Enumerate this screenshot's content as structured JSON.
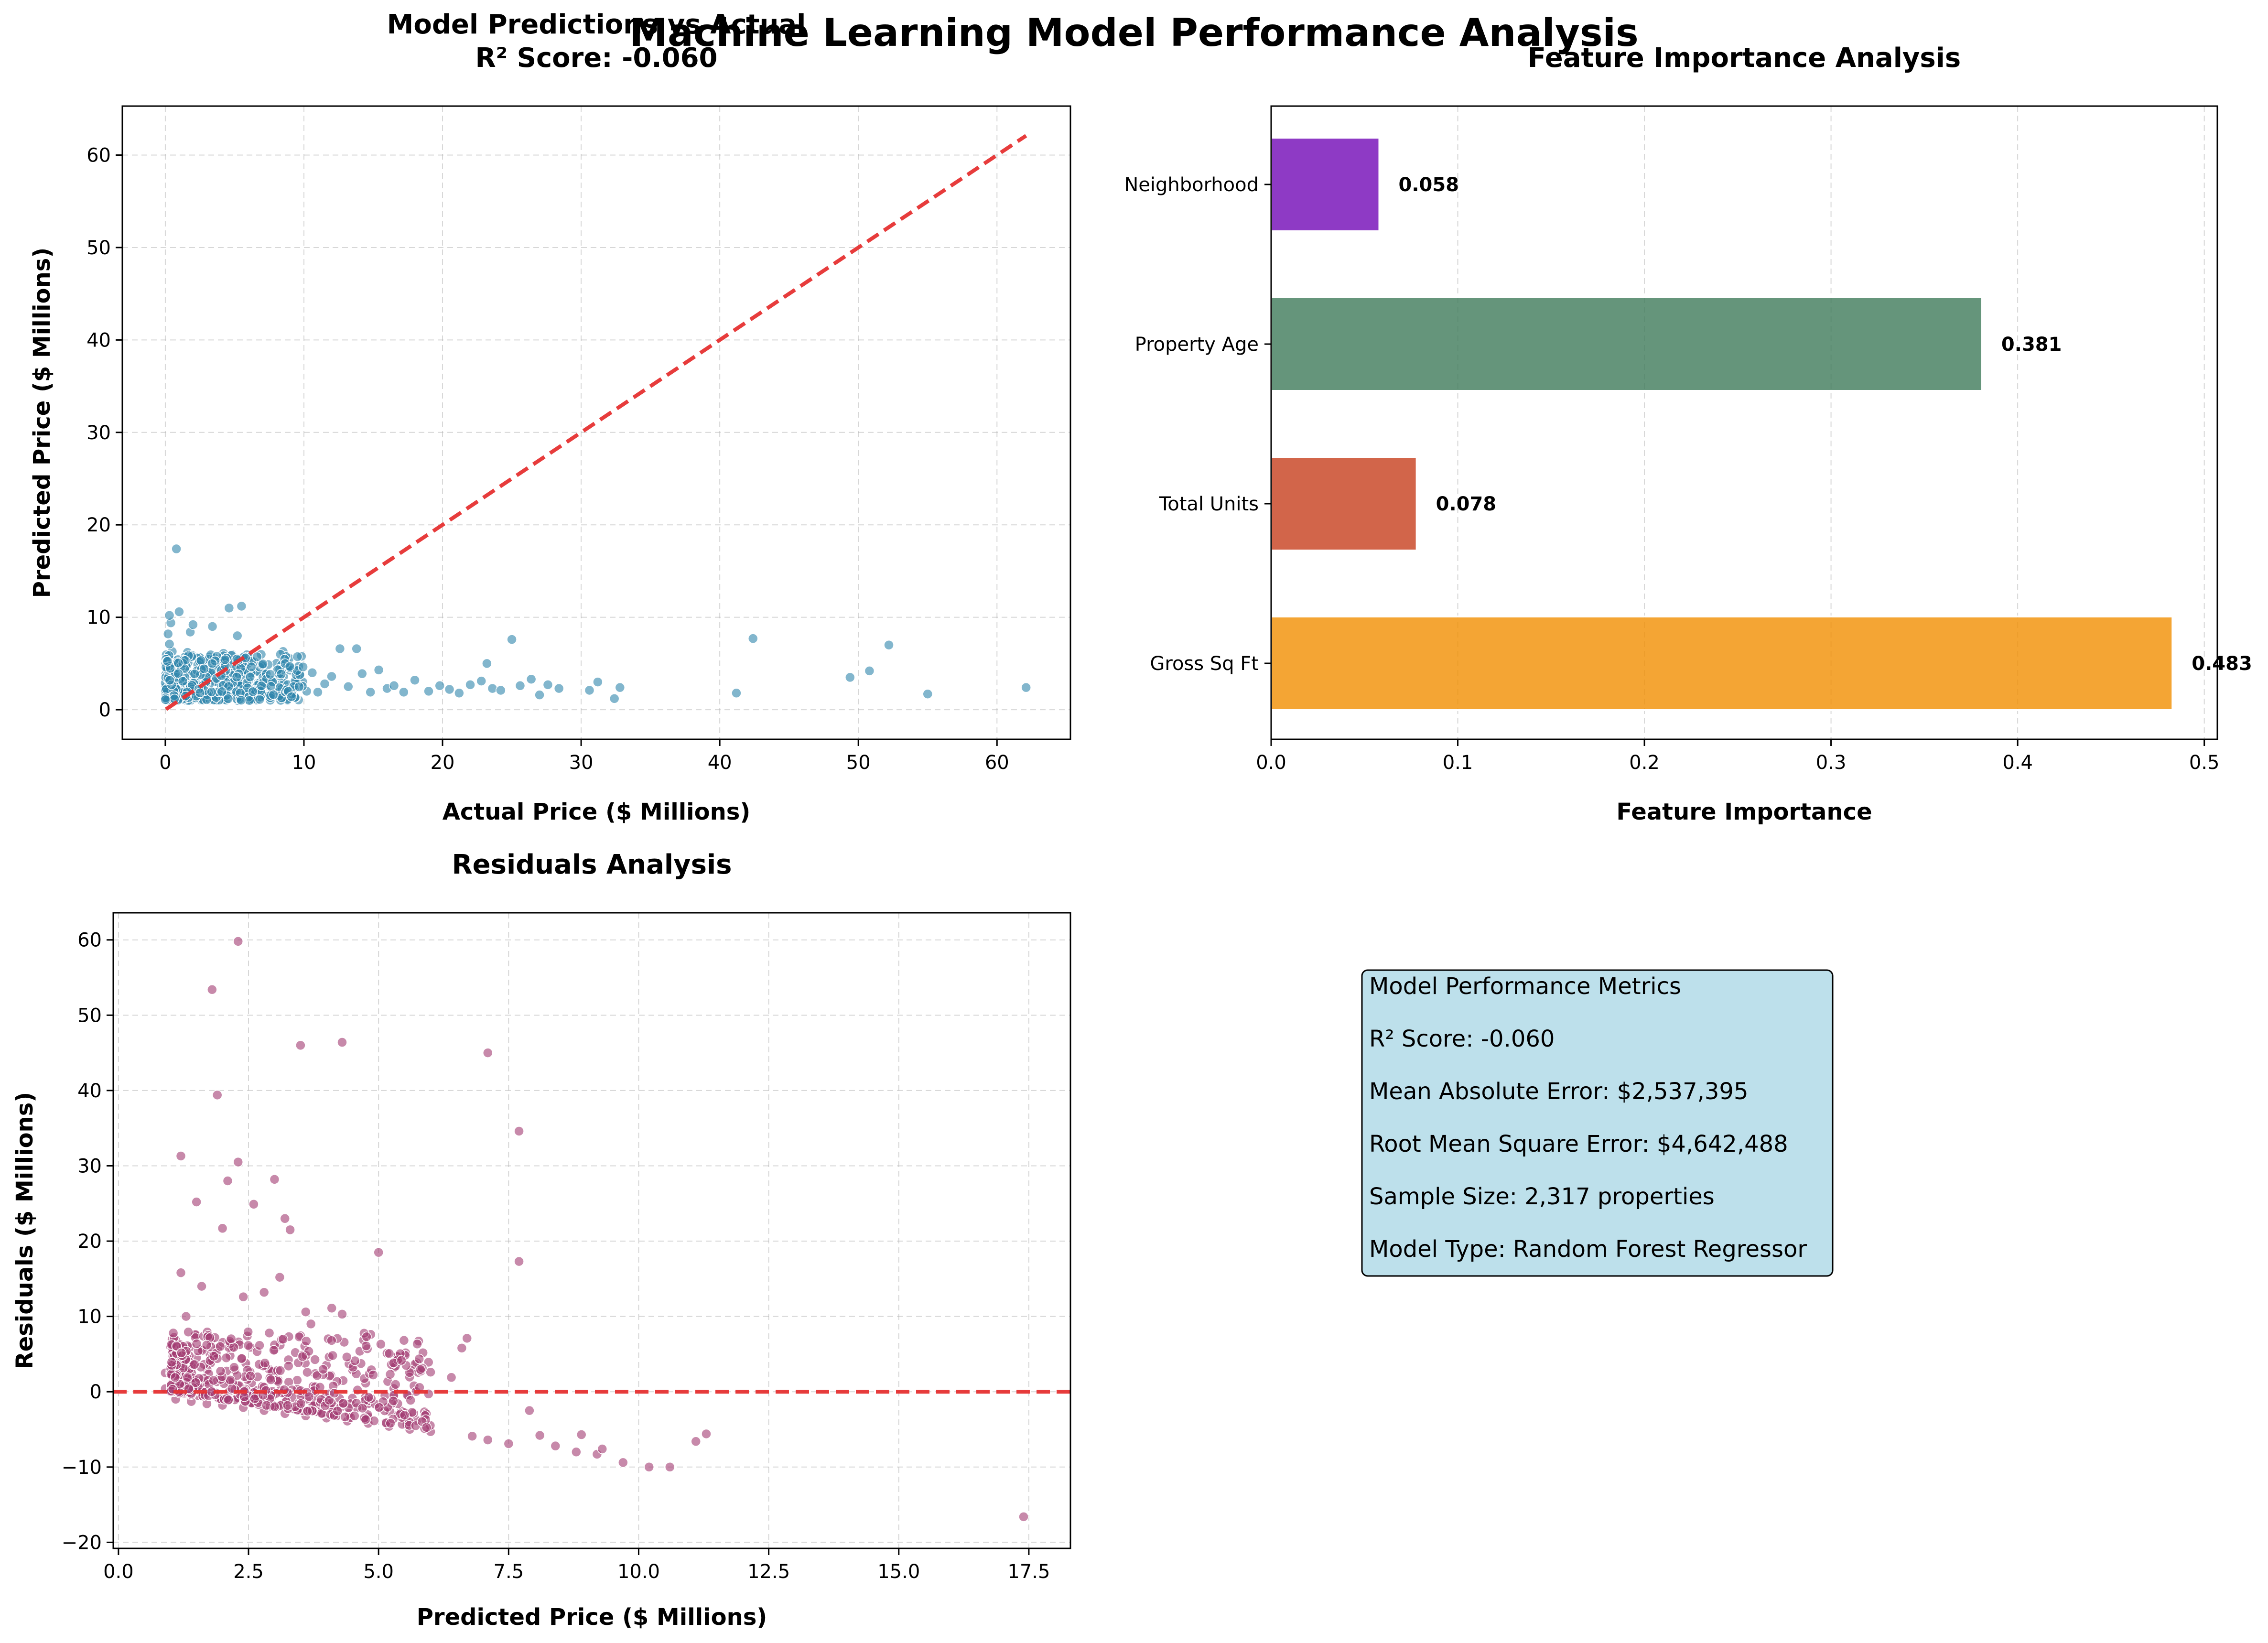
{
  "figure_title": "Machine Learning Model Performance Analysis",
  "chart_data": [
    {
      "type": "scatter",
      "title_line1": "Model Predictions vs Actual",
      "title_line2": "R² Score: -0.060",
      "xlabel": "Actual Price ($ Millions)",
      "ylabel": "Predicted Price ($ Millions)",
      "xlim": [
        -3.1,
        65.3
      ],
      "ylim": [
        -3.2,
        65.3
      ],
      "xticks": [
        0,
        10,
        20,
        30,
        40,
        50,
        60
      ],
      "yticks": [
        0,
        10,
        20,
        30,
        40,
        50,
        60
      ],
      "grid": true,
      "point_color": "#2E86AB",
      "reference_line": {
        "label": "perfect prediction",
        "from": [
          0.05,
          0.05
        ],
        "to": [
          62.1,
          62.1
        ],
        "color": "#E63232",
        "style": "dashed"
      },
      "points": [
        [
          0.2,
          1.2
        ],
        [
          0.3,
          2.4
        ],
        [
          0.1,
          3.1
        ],
        [
          0.4,
          4.0
        ],
        [
          0.2,
          5.2
        ],
        [
          0.5,
          6.3
        ],
        [
          0.3,
          7.1
        ],
        [
          0.2,
          8.2
        ],
        [
          0.4,
          9.4
        ],
        [
          0.3,
          10.2
        ],
        [
          0.8,
          17.4
        ],
        [
          1.0,
          10.6
        ],
        [
          0.6,
          1.8
        ],
        [
          0.7,
          2.9
        ],
        [
          0.9,
          3.6
        ],
        [
          1.1,
          4.4
        ],
        [
          1.3,
          5.1
        ],
        [
          1.2,
          1.5
        ],
        [
          1.5,
          2.2
        ],
        [
          1.4,
          3.3
        ],
        [
          1.6,
          6.2
        ],
        [
          1.8,
          8.4
        ],
        [
          2.0,
          9.2
        ],
        [
          2.2,
          2.0
        ],
        [
          2.4,
          3.8
        ],
        [
          2.6,
          5.5
        ],
        [
          2.8,
          1.7
        ],
        [
          3.0,
          2.6
        ],
        [
          3.2,
          4.2
        ],
        [
          3.4,
          9.0
        ],
        [
          3.6,
          1.9
        ],
        [
          3.8,
          3.0
        ],
        [
          4.0,
          2.3
        ],
        [
          4.2,
          6.1
        ],
        [
          4.4,
          2.8
        ],
        [
          4.6,
          11.0
        ],
        [
          4.8,
          1.6
        ],
        [
          5.0,
          3.4
        ],
        [
          5.3,
          2.1
        ],
        [
          5.5,
          11.2
        ],
        [
          5.2,
          8.0
        ],
        [
          5.8,
          2.5
        ],
        [
          6.1,
          3.7
        ],
        [
          6.4,
          1.9
        ],
        [
          6.7,
          2.9
        ],
        [
          7.0,
          4.1
        ],
        [
          7.3,
          2.2
        ],
        [
          7.6,
          3.2
        ],
        [
          8.0,
          1.8
        ],
        [
          8.3,
          2.7
        ],
        [
          8.5,
          6.3
        ],
        [
          8.8,
          4.5
        ],
        [
          9.2,
          2.4
        ],
        [
          9.6,
          3.3
        ],
        [
          10.2,
          2.0
        ],
        [
          10.6,
          4.0
        ],
        [
          11.0,
          1.9
        ],
        [
          11.5,
          2.8
        ],
        [
          12.0,
          3.6
        ],
        [
          12.6,
          6.6
        ],
        [
          13.2,
          2.5
        ],
        [
          13.8,
          6.6
        ],
        [
          14.2,
          3.9
        ],
        [
          14.8,
          1.9
        ],
        [
          15.4,
          4.3
        ],
        [
          16.0,
          2.3
        ],
        [
          16.5,
          2.6
        ],
        [
          17.2,
          1.9
        ],
        [
          18.0,
          3.2
        ],
        [
          19.0,
          2.0
        ],
        [
          19.8,
          2.6
        ],
        [
          20.5,
          2.2
        ],
        [
          21.2,
          1.8
        ],
        [
          22.0,
          2.7
        ],
        [
          22.8,
          3.1
        ],
        [
          23.2,
          5.0
        ],
        [
          23.6,
          2.3
        ],
        [
          24.2,
          2.1
        ],
        [
          25.0,
          7.6
        ],
        [
          25.6,
          2.6
        ],
        [
          26.4,
          3.3
        ],
        [
          27.0,
          1.6
        ],
        [
          27.6,
          2.7
        ],
        [
          28.4,
          2.3
        ],
        [
          30.6,
          2.1
        ],
        [
          31.2,
          3.0
        ],
        [
          32.4,
          1.2
        ],
        [
          32.8,
          2.4
        ],
        [
          41.2,
          1.8
        ],
        [
          42.4,
          7.7
        ],
        [
          49.4,
          3.5
        ],
        [
          50.8,
          4.2
        ],
        [
          52.2,
          7.0
        ],
        [
          55.0,
          1.7
        ],
        [
          62.1,
          2.4
        ]
      ],
      "dense_region": {
        "x_range": [
          0,
          10
        ],
        "y_range": [
          1,
          6
        ],
        "count": 460
      }
    },
    {
      "type": "bar",
      "orientation": "horizontal",
      "title": "Feature Importance Analysis",
      "xlabel": "Feature Importance",
      "categories": [
        "Gross Sq Ft",
        "Total Units",
        "Property Age",
        "Neighborhood"
      ],
      "values": [
        0.483,
        0.078,
        0.381,
        0.058
      ],
      "value_labels": [
        "0.483",
        "0.078",
        "0.381",
        "0.058"
      ],
      "colors": [
        "#F18F01",
        "#C73E1D",
        "#3F7B5A",
        "#7209B7"
      ],
      "xlim": [
        0,
        0.507
      ],
      "xticks": [
        "0.0",
        "0.1",
        "0.2",
        "0.3",
        "0.4",
        "0.5"
      ],
      "grid": true
    },
    {
      "type": "scatter",
      "title": "Residuals Analysis",
      "xlabel": "Predicted Price ($ Millions)",
      "ylabel": "Residuals ($ Millions)",
      "xlim": [
        -0.1,
        18.3
      ],
      "ylim": [
        -20.8,
        63.6
      ],
      "xticks": [
        "0.0",
        "2.5",
        "5.0",
        "7.5",
        "10.0",
        "12.5",
        "15.0",
        "17.5"
      ],
      "yticks": [
        "−20",
        "−10",
        "0",
        "10",
        "20",
        "30",
        "40",
        "50",
        "60"
      ],
      "grid": true,
      "point_color": "#A23B72",
      "zero_line": {
        "y": 0,
        "color": "#E63232",
        "style": "dashed"
      },
      "points": [
        [
          2.3,
          59.8
        ],
        [
          1.8,
          53.4
        ],
        [
          1.9,
          39.4
        ],
        [
          3.5,
          46.0
        ],
        [
          4.3,
          46.4
        ],
        [
          7.1,
          45.0
        ],
        [
          7.7,
          34.6
        ],
        [
          1.2,
          31.3
        ],
        [
          2.3,
          30.5
        ],
        [
          3.0,
          28.2
        ],
        [
          2.1,
          28.0
        ],
        [
          3.2,
          23.0
        ],
        [
          3.3,
          21.5
        ],
        [
          2.0,
          21.7
        ],
        [
          2.6,
          24.9
        ],
        [
          1.5,
          25.2
        ],
        [
          5.0,
          18.5
        ],
        [
          7.7,
          17.3
        ],
        [
          1.2,
          15.8
        ],
        [
          1.6,
          14.0
        ],
        [
          2.8,
          13.2
        ],
        [
          3.1,
          15.2
        ],
        [
          2.4,
          12.6
        ],
        [
          3.6,
          10.6
        ],
        [
          4.1,
          11.1
        ],
        [
          4.3,
          10.3
        ],
        [
          3.7,
          9.0
        ],
        [
          6.7,
          7.1
        ],
        [
          6.6,
          5.8
        ],
        [
          6.4,
          1.9
        ],
        [
          5.3,
          3.2
        ],
        [
          6.0,
          2.6
        ],
        [
          7.9,
          -2.5
        ],
        [
          8.1,
          -5.8
        ],
        [
          8.4,
          -7.2
        ],
        [
          8.8,
          -8.0
        ],
        [
          9.2,
          -8.3
        ],
        [
          9.7,
          -9.4
        ],
        [
          10.2,
          -10.0
        ],
        [
          10.6,
          -10.0
        ],
        [
          11.1,
          -6.6
        ],
        [
          11.3,
          -5.6
        ],
        [
          8.9,
          -5.7
        ],
        [
          9.3,
          -7.6
        ],
        [
          7.5,
          -6.9
        ],
        [
          7.1,
          -6.4
        ],
        [
          6.8,
          -5.9
        ],
        [
          17.4,
          -16.6
        ],
        [
          0.9,
          0.4
        ],
        [
          1.0,
          6.0
        ],
        [
          1.3,
          10.0
        ],
        [
          1.1,
          -1.0
        ],
        [
          1.4,
          -1.3
        ],
        [
          1.7,
          -1.6
        ],
        [
          2.0,
          -1.8
        ],
        [
          2.4,
          -2.1
        ],
        [
          2.8,
          -2.5
        ],
        [
          3.2,
          -2.9
        ],
        [
          3.6,
          -3.2
        ],
        [
          4.0,
          -3.5
        ],
        [
          4.4,
          -3.9
        ],
        [
          4.8,
          -4.2
        ],
        [
          5.2,
          -4.6
        ],
        [
          5.6,
          -5.0
        ],
        [
          6.0,
          -5.3
        ],
        [
          0.9,
          2.5
        ],
        [
          1.5,
          4.5
        ],
        [
          2.2,
          6.5
        ],
        [
          2.9,
          7.8
        ],
        [
          3.4,
          5.2
        ],
        [
          4.5,
          2.9
        ]
      ],
      "dense_region": {
        "x_range": [
          1,
          6
        ],
        "y_range": [
          -5,
          8
        ],
        "count": 520
      }
    }
  ],
  "metrics_box": {
    "lines": [
      "Model Performance Metrics",
      "R² Score: -0.060",
      "Mean Absolute Error: $2,537,395",
      "Root Mean Square Error: $4,642,488",
      "Sample Size: 2,317 properties",
      "Model Type: Random Forest Regressor"
    ],
    "background": "#ADD8E6"
  }
}
